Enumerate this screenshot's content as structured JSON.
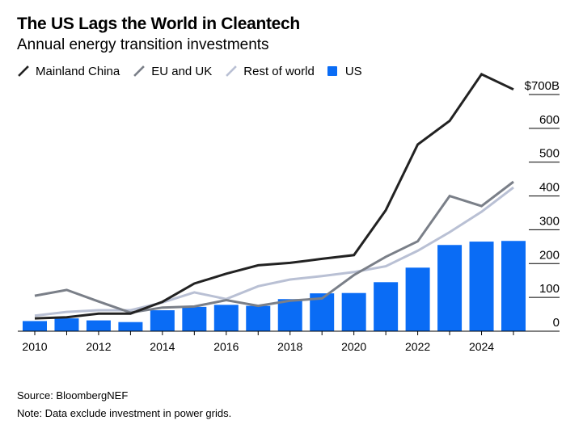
{
  "header": {
    "title": "The US Lags the World in Cleantech",
    "subtitle": "Annual energy transition investments"
  },
  "legend": [
    {
      "label": "Mainland China",
      "kind": "line",
      "color": "#222222"
    },
    {
      "label": "EU and UK",
      "kind": "line",
      "color": "#7a7f88"
    },
    {
      "label": "Rest of world",
      "kind": "line",
      "color": "#b9c0d4"
    },
    {
      "label": "US",
      "kind": "bar",
      "color": "#0a6cf5"
    }
  ],
  "footer": {
    "source": "Source: BloombergNEF",
    "note": "Note: Data exclude investment in power grids."
  },
  "chart_data": {
    "type": "bar+line",
    "x": [
      2010,
      2011,
      2012,
      2013,
      2014,
      2015,
      2016,
      2017,
      2018,
      2019,
      2020,
      2021,
      2022,
      2023,
      2024,
      2025
    ],
    "x_tick_labels": [
      "2010",
      "2012",
      "2014",
      "2016",
      "2018",
      "2020",
      "2022",
      "2024"
    ],
    "y_tick_labels": [
      "0",
      "100",
      "200",
      "300",
      "400",
      "500",
      "600",
      "$700B"
    ],
    "ylim": [
      0,
      700
    ],
    "y_ticks": [
      0,
      100,
      200,
      300,
      400,
      500,
      600,
      700
    ],
    "grid": false,
    "legend_position": "top-left",
    "bars": {
      "name": "US",
      "color": "#0a6cf5",
      "values": [
        30,
        38,
        32,
        27,
        62,
        72,
        78,
        75,
        95,
        112,
        113,
        145,
        188,
        255,
        265,
        267
      ]
    },
    "lines": [
      {
        "name": "Mainland China",
        "color": "#222222",
        "values": [
          38,
          41,
          52,
          52,
          87,
          141,
          170,
          195,
          202,
          214,
          225,
          358,
          552,
          622,
          760,
          715
        ]
      },
      {
        "name": "EU and UK",
        "color": "#7a7f88",
        "values": [
          105,
          122,
          88,
          55,
          70,
          73,
          92,
          75,
          90,
          97,
          166,
          220,
          266,
          400,
          370,
          442
        ]
      },
      {
        "name": "Rest of world",
        "color": "#b9c0d4",
        "values": [
          46,
          57,
          62,
          62,
          85,
          115,
          95,
          133,
          153,
          163,
          175,
          192,
          238,
          293,
          353,
          425
        ]
      }
    ]
  }
}
